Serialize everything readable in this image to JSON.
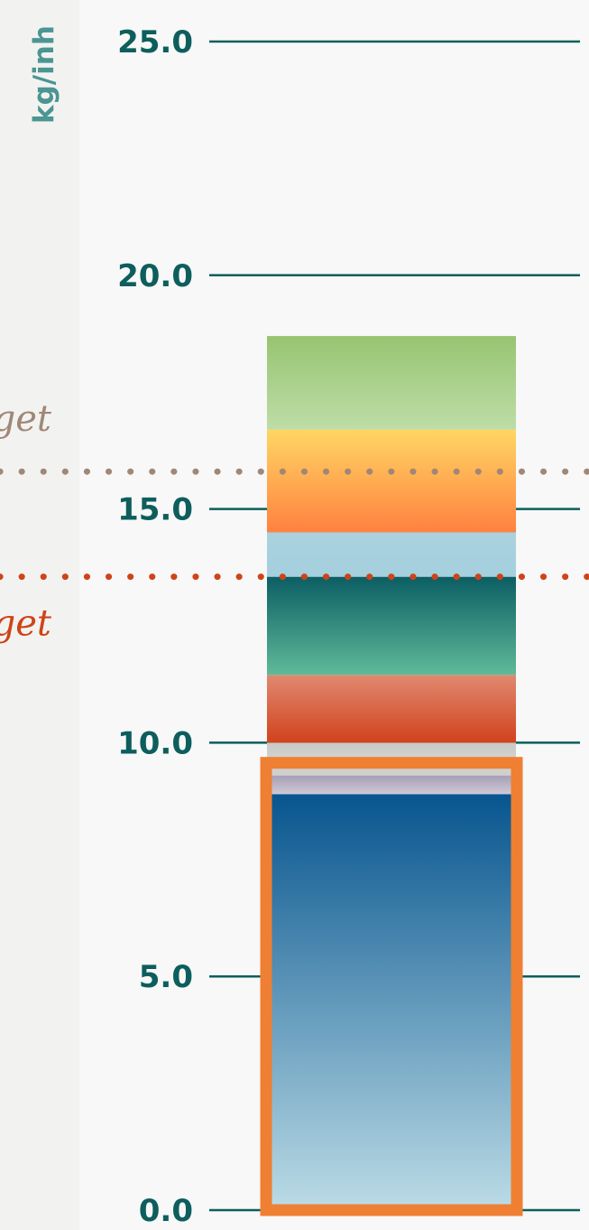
{
  "chart_data": {
    "type": "bar",
    "title": "",
    "ylabel": "kg/inh",
    "ylim": [
      0,
      25
    ],
    "yticks": [
      {
        "value": 0,
        "label": "0.0"
      },
      {
        "value": 5,
        "label": "5.0"
      },
      {
        "value": 10,
        "label": "10.0"
      },
      {
        "value": 15,
        "label": "15.0"
      },
      {
        "value": 20,
        "label": "20.0"
      },
      {
        "value": 25,
        "label": "25.0"
      }
    ],
    "grid": true,
    "stacked_segments": [
      {
        "from": 0.0,
        "to": 8.9,
        "top_color": "#07558f",
        "bottom_color": "#bcdce6",
        "highlighted": true
      },
      {
        "from": 8.9,
        "to": 9.3,
        "top_color": "#a69fb6",
        "bottom_color": "#d0c9d6",
        "highlighted": true
      },
      {
        "from": 9.3,
        "to": 9.55,
        "top_color": "#cfd0ce",
        "bottom_color": "#cfd0ce",
        "highlighted": true
      },
      {
        "from": 9.55,
        "to": 10.0,
        "top_color": "#c9c9c6",
        "bottom_color": "#d4d4d1",
        "highlighted": false
      },
      {
        "from": 10.0,
        "to": 11.45,
        "top_color": "#e08971",
        "bottom_color": "#d1421c",
        "highlighted": false
      },
      {
        "from": 11.45,
        "to": 13.55,
        "top_color": "#0c5e63",
        "bottom_color": "#5fba99",
        "highlighted": false
      },
      {
        "from": 13.55,
        "to": 14.5,
        "top_color": "#aad1de",
        "bottom_color": "#a5d0de",
        "highlighted": false
      },
      {
        "from": 14.5,
        "to": 16.7,
        "top_color": "#ffd664",
        "bottom_color": "#ff8140",
        "highlighted": false
      },
      {
        "from": 16.7,
        "to": 18.7,
        "top_color": "#97c471",
        "bottom_color": "#bedda7",
        "highlighted": false
      }
    ],
    "highlight_color": "#ef7f32",
    "reference_lines": [
      {
        "value": 15.8,
        "label": "get",
        "color": "#a08776"
      },
      {
        "value": 13.55,
        "label": "get",
        "color": "#cf4318"
      }
    ],
    "colors": {
      "axis_text": "#0d5e5c",
      "unit_text": "#4b9592",
      "gridline": "#0d5e5c"
    }
  }
}
